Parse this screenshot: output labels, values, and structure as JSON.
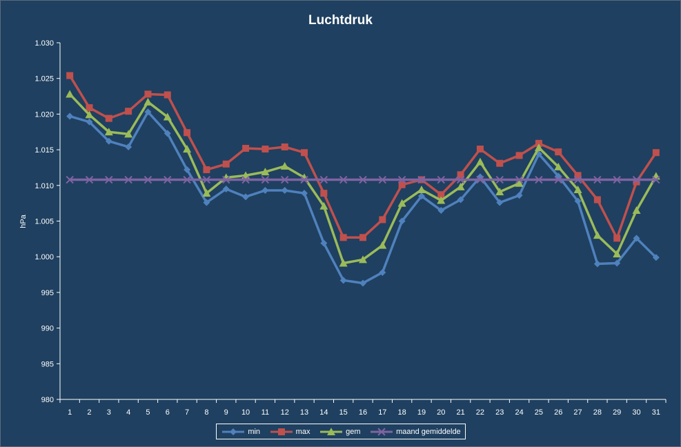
{
  "chart_data": {
    "type": "line",
    "title": "Luchtdruk",
    "xlabel": "",
    "ylabel": "hPa",
    "ylim": [
      980,
      1030
    ],
    "ytick_step": 5,
    "y_tick_labels": [
      "980",
      "985",
      "990",
      "995",
      "1.000",
      "1.005",
      "1.010",
      "1.015",
      "1.020",
      "1.025",
      "1.030"
    ],
    "categories": [
      "1",
      "2",
      "3",
      "4",
      "5",
      "6",
      "7",
      "8",
      "9",
      "10",
      "11",
      "12",
      "13",
      "14",
      "15",
      "16",
      "17",
      "18",
      "19",
      "20",
      "21",
      "22",
      "23",
      "24",
      "25",
      "26",
      "27",
      "28",
      "29",
      "30",
      "31"
    ],
    "grid": false,
    "legend_position": "bottom",
    "series": [
      {
        "name": "min",
        "color": "#4f81bd",
        "marker": "diamond",
        "values": [
          1019.7,
          1018.9,
          1016.2,
          1015.4,
          1020.3,
          1017.3,
          1012.2,
          1007.6,
          1009.5,
          1008.4,
          1009.3,
          1009.3,
          1008.9,
          1001.9,
          996.7,
          996.3,
          997.8,
          1005.0,
          1008.5,
          1006.5,
          1008.0,
          1011.2,
          1007.6,
          1008.6,
          1014.4,
          1011.3,
          1007.8,
          999.0,
          999.1,
          1002.6,
          999.9
        ]
      },
      {
        "name": "max",
        "color": "#c0504d",
        "marker": "square",
        "values": [
          1025.4,
          1020.9,
          1019.4,
          1020.4,
          1022.8,
          1022.7,
          1017.4,
          1012.2,
          1013.0,
          1015.2,
          1015.1,
          1015.4,
          1014.6,
          1008.9,
          1002.7,
          1002.7,
          1005.2,
          1010.1,
          1010.8,
          1008.7,
          1011.5,
          1015.1,
          1013.1,
          1014.2,
          1015.9,
          1014.7,
          1011.4,
          1008.0,
          1002.6,
          1010.5,
          1014.6
        ]
      },
      {
        "name": "gem",
        "color": "#9bbb59",
        "marker": "triangle",
        "values": [
          1022.8,
          1019.9,
          1017.5,
          1017.2,
          1021.7,
          1019.6,
          1015.1,
          1008.9,
          1011.1,
          1011.4,
          1011.9,
          1012.7,
          1011.1,
          1007.1,
          999.1,
          999.6,
          1001.6,
          1007.5,
          1009.4,
          1007.9,
          1009.8,
          1013.3,
          1009.1,
          1010.3,
          1015.3,
          1012.6,
          1009.4,
          1003.0,
          1000.4,
          1006.5,
          1011.3
        ]
      },
      {
        "name": "maand gemiddelde",
        "color": "#8064a2",
        "marker": "x",
        "values": [
          1010.8,
          1010.8,
          1010.8,
          1010.8,
          1010.8,
          1010.8,
          1010.8,
          1010.8,
          1010.8,
          1010.8,
          1010.8,
          1010.8,
          1010.8,
          1010.8,
          1010.8,
          1010.8,
          1010.8,
          1010.8,
          1010.8,
          1010.8,
          1010.8,
          1010.8,
          1010.8,
          1010.8,
          1010.8,
          1010.8,
          1010.8,
          1010.8,
          1010.8,
          1010.8,
          1010.8
        ]
      }
    ]
  }
}
